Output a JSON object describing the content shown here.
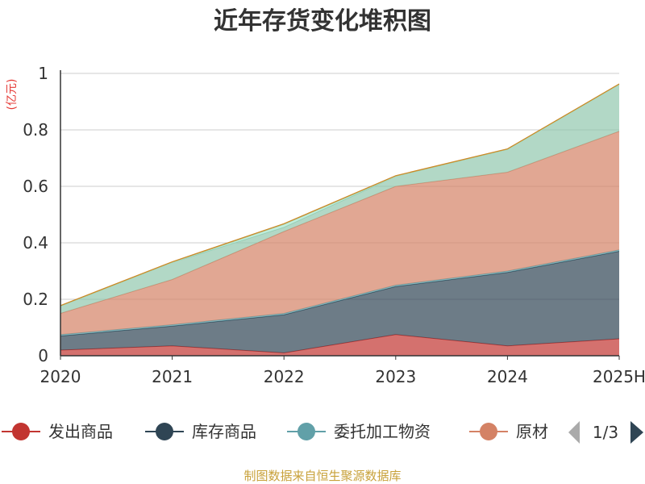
{
  "chart_data": {
    "type": "area",
    "stacked": true,
    "title": "近年存货变化堆积图",
    "unit_label": "(亿元)",
    "categories": [
      "2020",
      "2021",
      "2022",
      "2023",
      "2024",
      "2025H"
    ],
    "ylim": [
      0,
      1
    ],
    "yticks": [
      "0",
      "0.2",
      "0.4",
      "0.6",
      "0.8",
      "1"
    ],
    "grid": true,
    "series": [
      {
        "name": "发出商品",
        "color": "#c23531",
        "values": [
          0.02,
          0.035,
          0.01,
          0.075,
          0.035,
          0.06
        ]
      },
      {
        "name": "库存商品",
        "color": "#2f4554",
        "values": [
          0.05,
          0.07,
          0.135,
          0.17,
          0.26,
          0.31
        ]
      },
      {
        "name": "委托加工物资",
        "color": "#61a0a8",
        "values": [
          0.005,
          0.005,
          0.005,
          0.005,
          0.005,
          0.005
        ]
      },
      {
        "name": "原材料",
        "color": "#d48265",
        "values": [
          0.075,
          0.16,
          0.29,
          0.35,
          0.35,
          0.42
        ]
      },
      {
        "name": "",
        "color": "#91c7ae",
        "values": [
          0.025,
          0.06,
          0.015,
          0.035,
          0.08,
          0.165
        ]
      },
      {
        "name": "",
        "color": "#a8e6cf",
        "values": [
          0.0,
          0.0,
          0.01,
          0.0,
          0.0,
          0.0
        ]
      },
      {
        "name": "",
        "color": "#ca8622",
        "values": [
          0.003,
          0.003,
          0.003,
          0.003,
          0.003,
          0.003
        ]
      }
    ],
    "legend": {
      "position": "bottom",
      "visible_items": [
        "发出商品",
        "库存商品",
        "委托加工物资",
        "原材"
      ],
      "page": "1/3"
    },
    "source_note": "制图数据来自恒生聚源数据库"
  }
}
